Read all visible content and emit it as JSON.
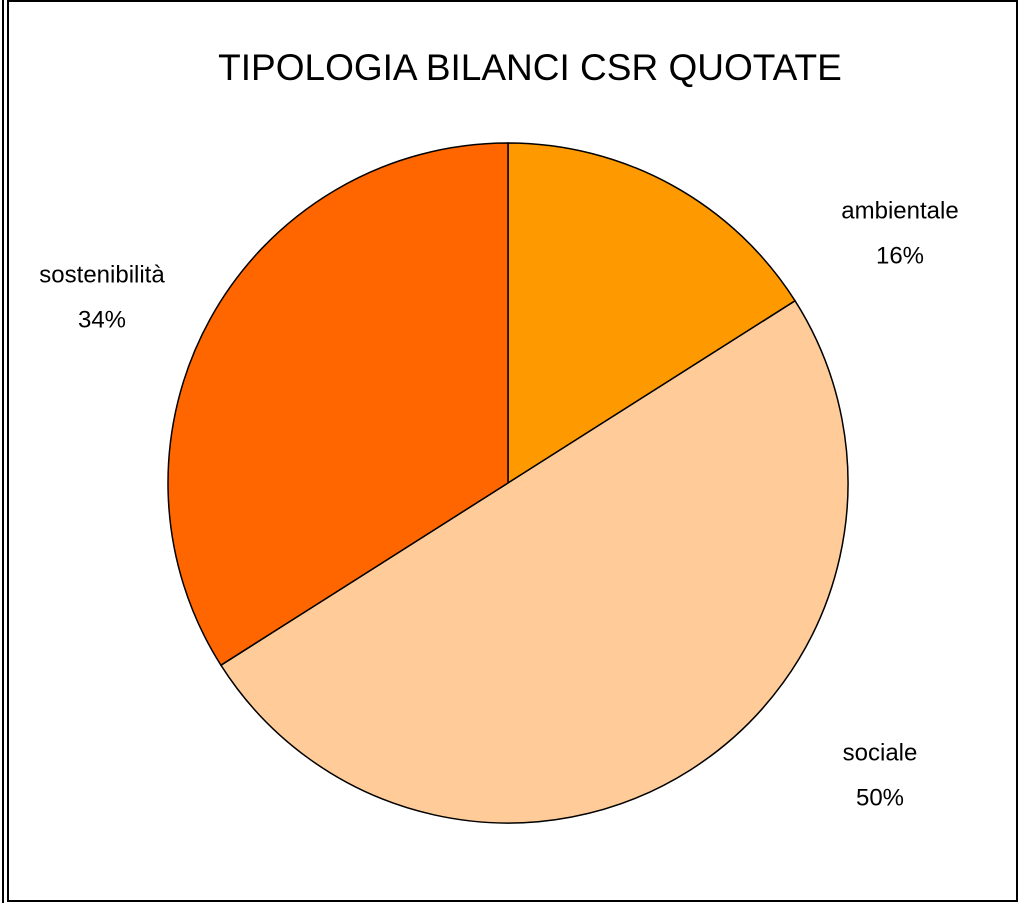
{
  "chart_data": {
    "type": "pie",
    "title": "TIPOLOGIA BILANCI CSR QUOTATE",
    "categories": [
      "ambientale",
      "sociale",
      "sostenibilità"
    ],
    "values": [
      16,
      50,
      34
    ],
    "value_labels": [
      "16%",
      "50%",
      "34%"
    ],
    "colors": [
      "#FF9900",
      "#FFCC99",
      "#FF6600"
    ]
  }
}
